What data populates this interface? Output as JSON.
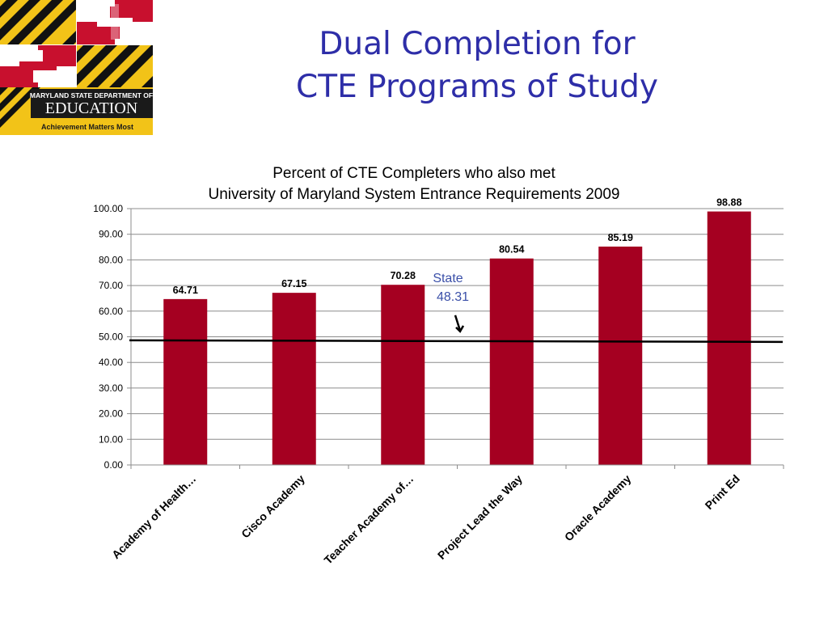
{
  "slide": {
    "title_line1": "Dual Completion for",
    "title_line2": "CTE Programs of Study"
  },
  "logo": {
    "text_line1": "MARYLAND STATE DEPARTMENT OF",
    "text_line2": "EDUCATION",
    "tagline": "Achievement Matters Most",
    "colors": {
      "gold": "#f2c318",
      "black": "#111111",
      "red": "#c8102e",
      "white": "#ffffff",
      "banner": "#1a1a1a",
      "tagline_bg": "#f2c318"
    }
  },
  "chart_data": {
    "type": "bar",
    "title_line1": "Percent of CTE Completers who also met",
    "title_line2": "University of Maryland System Entrance Requirements 2009",
    "categories": [
      "Academy of Health…",
      "Cisco Academy",
      "Teacher Academy of…",
      "Project Lead the Way",
      "Oracle Academy",
      "Print Ed"
    ],
    "values": [
      64.71,
      67.15,
      70.28,
      80.54,
      85.19,
      98.88
    ],
    "data_labels": [
      "64.71",
      "67.15",
      "70.28",
      "80.54",
      "85.19",
      "98.88"
    ],
    "y_ticks": [
      "0.00",
      "10.00",
      "20.00",
      "30.00",
      "40.00",
      "50.00",
      "60.00",
      "70.00",
      "80.00",
      "90.00",
      "100.00"
    ],
    "ylim": [
      0,
      100
    ],
    "grid": true,
    "legend": "none",
    "bar_color": "#a50021",
    "reference_line": {
      "value": 48.31,
      "label": "State",
      "value_label": "48.31",
      "color": "#000000",
      "label_color": "#3a4fa8"
    }
  }
}
